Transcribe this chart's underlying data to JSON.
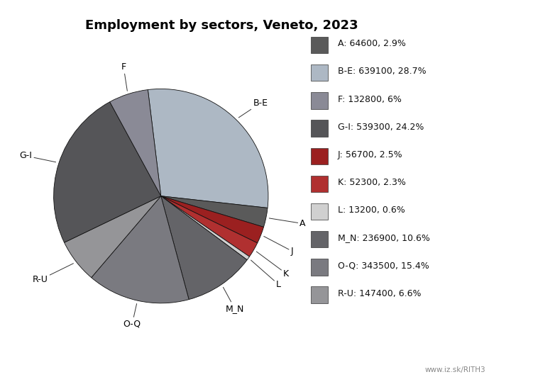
{
  "title": "Employment by sectors, Veneto, 2023",
  "sectors": [
    "A",
    "B-E",
    "F",
    "G-I",
    "J",
    "K",
    "L",
    "M_N",
    "O-Q",
    "R-U"
  ],
  "values": [
    64600,
    639100,
    132800,
    539300,
    56700,
    52300,
    13200,
    236900,
    343500,
    147400
  ],
  "colors": {
    "A": "#5a5a5a",
    "B-E": "#adb8c4",
    "F": "#8a8a96",
    "G-I": "#555558",
    "J": "#9b2020",
    "K": "#b03030",
    "L": "#d0d0d0",
    "M_N": "#646468",
    "O-Q": "#7a7a80",
    "R-U": "#959598"
  },
  "legend_labels": [
    "A: 64600, 2.9%",
    "B-E: 639100, 28.7%",
    "F: 132800, 6%",
    "G-I: 539300, 24.2%",
    "J: 56700, 2.5%",
    "K: 52300, 2.3%",
    "L: 13200, 0.6%",
    "M_N: 236900, 10.6%",
    "O-Q: 343500, 15.4%",
    "R-U: 147400, 6.6%"
  ],
  "wedge_linewidth": 0.6,
  "wedge_edgecolor": "#111111",
  "background_color": "#ffffff",
  "title_fontsize": 13,
  "watermark": "www.iz.sk/RITH3",
  "startangle": 97,
  "sector_order": [
    "B-E",
    "A",
    "J",
    "K",
    "L",
    "M_N",
    "O-Q",
    "R-U",
    "G-I",
    "F"
  ]
}
